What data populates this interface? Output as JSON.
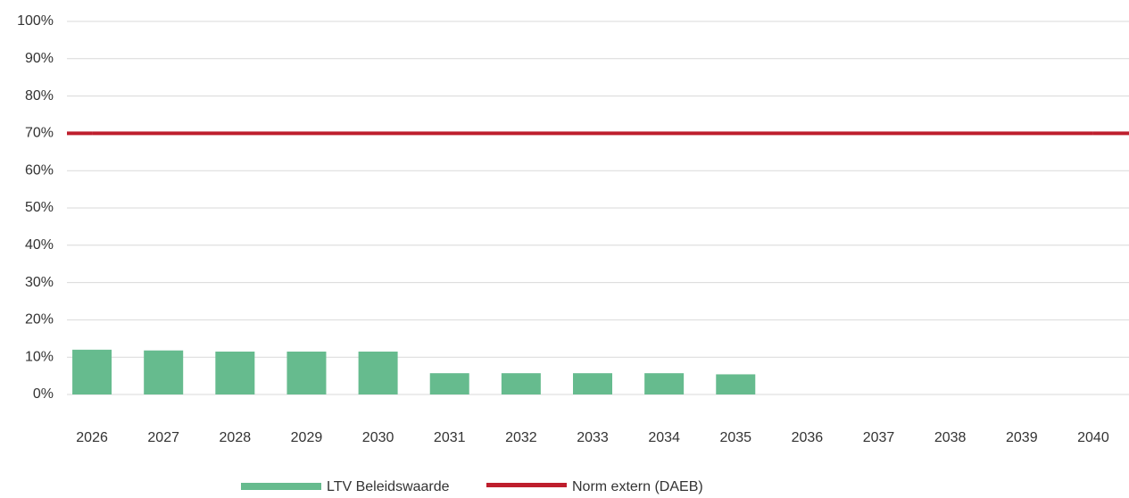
{
  "chart_data": {
    "type": "bar_line",
    "categories": [
      "2026",
      "2027",
      "2028",
      "2029",
      "2030",
      "2031",
      "2032",
      "2033",
      "2034",
      "2035",
      "2036",
      "2037",
      "2038",
      "2039",
      "2040"
    ],
    "series": [
      {
        "name": "LTV Beleidswaarde",
        "type": "bar",
        "color": "#66bb8e",
        "values": [
          12,
          11.8,
          11.5,
          11.5,
          11.5,
          5.7,
          5.7,
          5.7,
          5.7,
          5.4,
          null,
          null,
          null,
          null,
          null
        ]
      },
      {
        "name": "Norm extern (DAEB)",
        "type": "line",
        "color": "#be1e2d",
        "values": [
          70,
          70,
          70,
          70,
          70,
          70,
          70,
          70,
          70,
          70,
          70,
          70,
          70,
          70,
          70
        ]
      }
    ],
    "ylim": [
      0,
      100
    ],
    "yticks": [
      {
        "value": 0,
        "label": "0%"
      },
      {
        "value": 10,
        "label": "10%"
      },
      {
        "value": 20,
        "label": "20%"
      },
      {
        "value": 30,
        "label": "30%"
      },
      {
        "value": 40,
        "label": "40%"
      },
      {
        "value": 50,
        "label": "50%"
      },
      {
        "value": 60,
        "label": "60%"
      },
      {
        "value": 70,
        "label": "70%"
      },
      {
        "value": 80,
        "label": "80%"
      },
      {
        "value": 90,
        "label": "90%"
      },
      {
        "value": 100,
        "label": "100%"
      }
    ],
    "grid": true,
    "legend": "bottom"
  }
}
